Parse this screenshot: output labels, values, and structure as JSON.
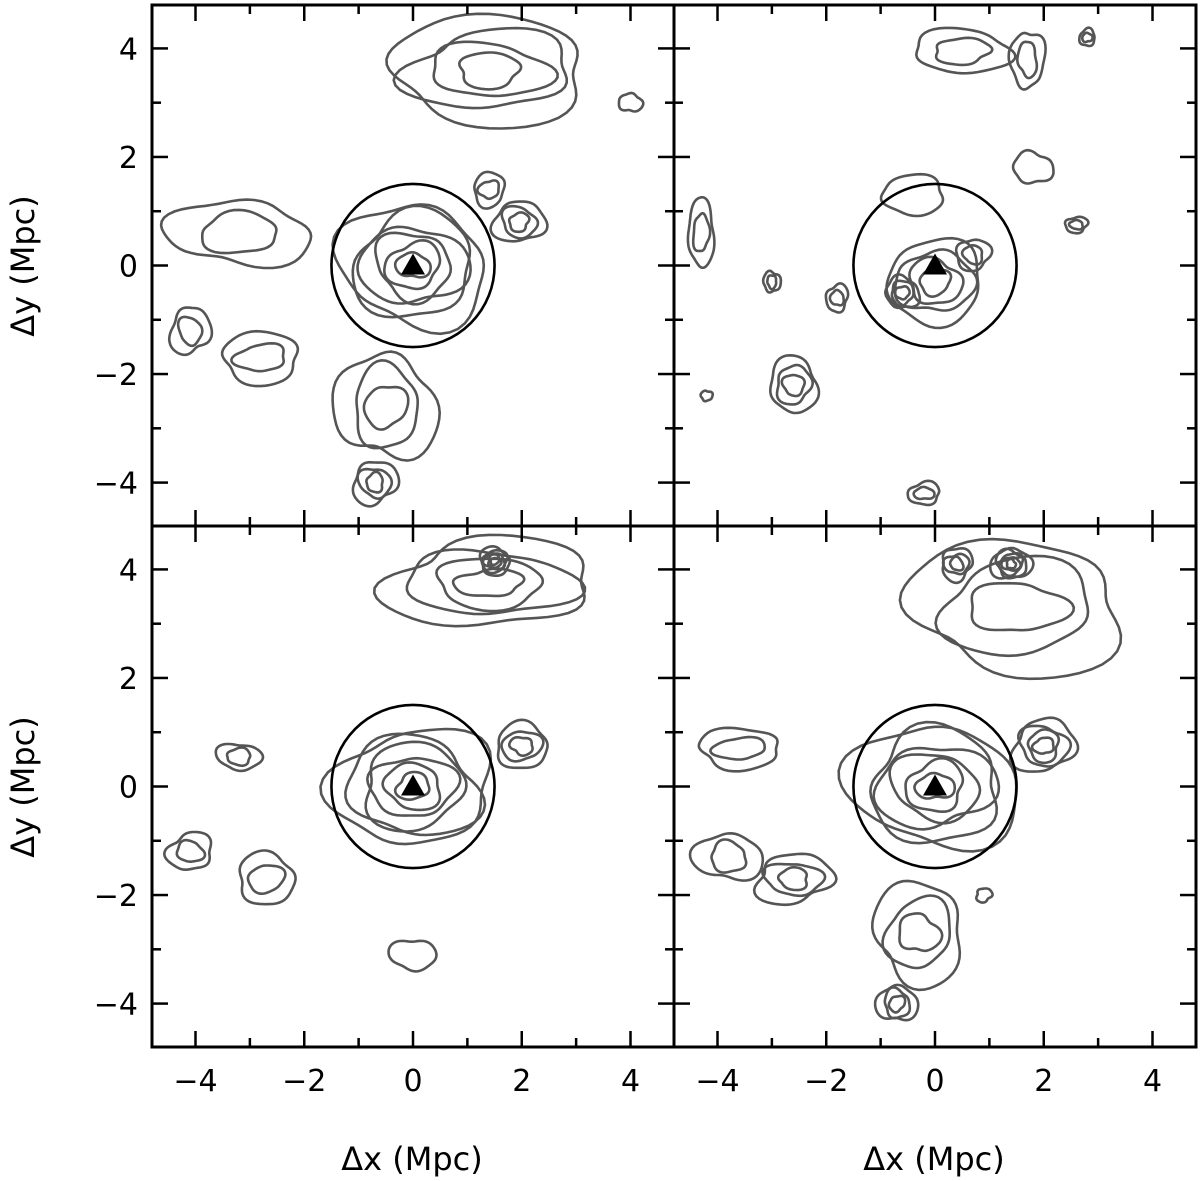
{
  "chart_data": {
    "type": "contour",
    "layout": "2x2 shared axes",
    "xlabel": "Δx (Mpc)",
    "ylabel": "Δy (Mpc)",
    "xlim": [
      -4.8,
      4.8
    ],
    "ylim": [
      -4.8,
      4.8
    ],
    "x_ticks": [
      -4,
      -2,
      0,
      2,
      4
    ],
    "y_ticks": [
      -4,
      -2,
      0,
      2,
      4
    ],
    "x_tick_labels": [
      "−4",
      "−2",
      "0",
      "2",
      "4"
    ],
    "y_tick_labels": [
      "−4",
      "−2",
      "0",
      "2",
      "4"
    ],
    "minor_tick_step": 1,
    "marker": {
      "shape": "triangle",
      "x": 0,
      "y": 0
    },
    "circle_radius_mpc": 1.5,
    "colors": {
      "contour": "#555555",
      "frame": "#000000"
    },
    "panels": [
      {
        "position": "top-left",
        "contours": [
          {
            "x": 0,
            "y": 0,
            "rx": 1.35,
            "ry": 1.1,
            "levels": 6
          },
          {
            "x": 1.95,
            "y": 0.8,
            "rx": 0.45,
            "ry": 0.4,
            "levels": 3
          },
          {
            "x": 1.4,
            "y": 1.4,
            "rx": 0.3,
            "ry": 0.3,
            "levels": 2
          },
          {
            "x": -3.2,
            "y": 0.6,
            "rx": 1.3,
            "ry": 0.6,
            "levels": 2
          },
          {
            "x": -4.1,
            "y": -1.2,
            "rx": 0.35,
            "ry": 0.45,
            "levels": 2
          },
          {
            "x": -2.8,
            "y": -1.7,
            "rx": 0.75,
            "ry": 0.45,
            "levels": 2
          },
          {
            "x": -0.5,
            "y": -2.6,
            "rx": 0.9,
            "ry": 1.0,
            "levels": 3
          },
          {
            "x": -0.7,
            "y": -4.0,
            "rx": 0.4,
            "ry": 0.4,
            "levels": 3
          },
          {
            "x": 1.4,
            "y": 3.6,
            "rx": 1.9,
            "ry": 0.95,
            "levels": 4
          },
          {
            "x": 4.0,
            "y": 3.0,
            "rx": 0.2,
            "ry": 0.18,
            "levels": 1
          }
        ]
      },
      {
        "position": "top-right",
        "contours": [
          {
            "x": 0.0,
            "y": -0.3,
            "rx": 0.9,
            "ry": 0.75,
            "levels": 4
          },
          {
            "x": -0.6,
            "y": -0.5,
            "rx": 0.3,
            "ry": 0.3,
            "levels": 3
          },
          {
            "x": 0.7,
            "y": 0.2,
            "rx": 0.3,
            "ry": 0.3,
            "levels": 2
          },
          {
            "x": -0.4,
            "y": 1.3,
            "rx": 0.6,
            "ry": 0.35,
            "levels": 1
          },
          {
            "x": 1.8,
            "y": 1.8,
            "rx": 0.35,
            "ry": 0.3,
            "levels": 1
          },
          {
            "x": 2.6,
            "y": 0.75,
            "rx": 0.2,
            "ry": 0.15,
            "levels": 2
          },
          {
            "x": -4.3,
            "y": 0.6,
            "rx": 0.25,
            "ry": 0.6,
            "levels": 2
          },
          {
            "x": -3.0,
            "y": -0.3,
            "rx": 0.15,
            "ry": 0.2,
            "levels": 2
          },
          {
            "x": -1.8,
            "y": -0.6,
            "rx": 0.2,
            "ry": 0.25,
            "levels": 2
          },
          {
            "x": -2.6,
            "y": -2.2,
            "rx": 0.45,
            "ry": 0.5,
            "levels": 3
          },
          {
            "x": -4.2,
            "y": -2.4,
            "rx": 0.1,
            "ry": 0.1,
            "levels": 1
          },
          {
            "x": -0.2,
            "y": -4.2,
            "rx": 0.3,
            "ry": 0.2,
            "levels": 2
          },
          {
            "x": 0.5,
            "y": 3.95,
            "rx": 0.9,
            "ry": 0.4,
            "levels": 2
          },
          {
            "x": 1.7,
            "y": 3.8,
            "rx": 0.3,
            "ry": 0.55,
            "levels": 2
          },
          {
            "x": 2.8,
            "y": 4.2,
            "rx": 0.15,
            "ry": 0.15,
            "levels": 2
          }
        ]
      },
      {
        "position": "bottom-left",
        "contours": [
          {
            "x": 0,
            "y": 0,
            "rx": 1.4,
            "ry": 1.1,
            "levels": 6
          },
          {
            "x": 2.0,
            "y": 0.75,
            "rx": 0.5,
            "ry": 0.4,
            "levels": 3
          },
          {
            "x": -3.2,
            "y": 0.55,
            "rx": 0.4,
            "ry": 0.25,
            "levels": 2
          },
          {
            "x": -4.1,
            "y": -1.2,
            "rx": 0.4,
            "ry": 0.35,
            "levels": 2
          },
          {
            "x": -2.7,
            "y": -1.7,
            "rx": 0.55,
            "ry": 0.45,
            "levels": 2
          },
          {
            "x": 0.0,
            "y": -3.1,
            "rx": 0.4,
            "ry": 0.3,
            "levels": 1
          },
          {
            "x": 1.4,
            "y": 3.75,
            "rx": 1.9,
            "ry": 0.8,
            "levels": 4
          },
          {
            "x": 1.5,
            "y": 4.15,
            "rx": 0.28,
            "ry": 0.25,
            "levels": 5
          }
        ]
      },
      {
        "position": "bottom-right",
        "contours": [
          {
            "x": 0,
            "y": 0,
            "rx": 1.5,
            "ry": 1.15,
            "levels": 6
          },
          {
            "x": 2.0,
            "y": 0.75,
            "rx": 0.55,
            "ry": 0.5,
            "levels": 4
          },
          {
            "x": -3.6,
            "y": 0.7,
            "rx": 0.8,
            "ry": 0.35,
            "levels": 2
          },
          {
            "x": -3.8,
            "y": -1.3,
            "rx": 0.6,
            "ry": 0.45,
            "levels": 2
          },
          {
            "x": -2.6,
            "y": -1.7,
            "rx": 0.7,
            "ry": 0.45,
            "levels": 3
          },
          {
            "x": -0.3,
            "y": -2.7,
            "rx": 0.85,
            "ry": 0.9,
            "levels": 3
          },
          {
            "x": -0.7,
            "y": -4.0,
            "rx": 0.35,
            "ry": 0.35,
            "levels": 3
          },
          {
            "x": 0.9,
            "y": -2.0,
            "rx": 0.15,
            "ry": 0.12,
            "levels": 1
          },
          {
            "x": 1.5,
            "y": 3.3,
            "rx": 2.0,
            "ry": 1.2,
            "levels": 3
          },
          {
            "x": 1.4,
            "y": 4.1,
            "rx": 0.35,
            "ry": 0.3,
            "levels": 5
          },
          {
            "x": 0.4,
            "y": 4.1,
            "rx": 0.3,
            "ry": 0.28,
            "levels": 3
          }
        ]
      }
    ]
  }
}
